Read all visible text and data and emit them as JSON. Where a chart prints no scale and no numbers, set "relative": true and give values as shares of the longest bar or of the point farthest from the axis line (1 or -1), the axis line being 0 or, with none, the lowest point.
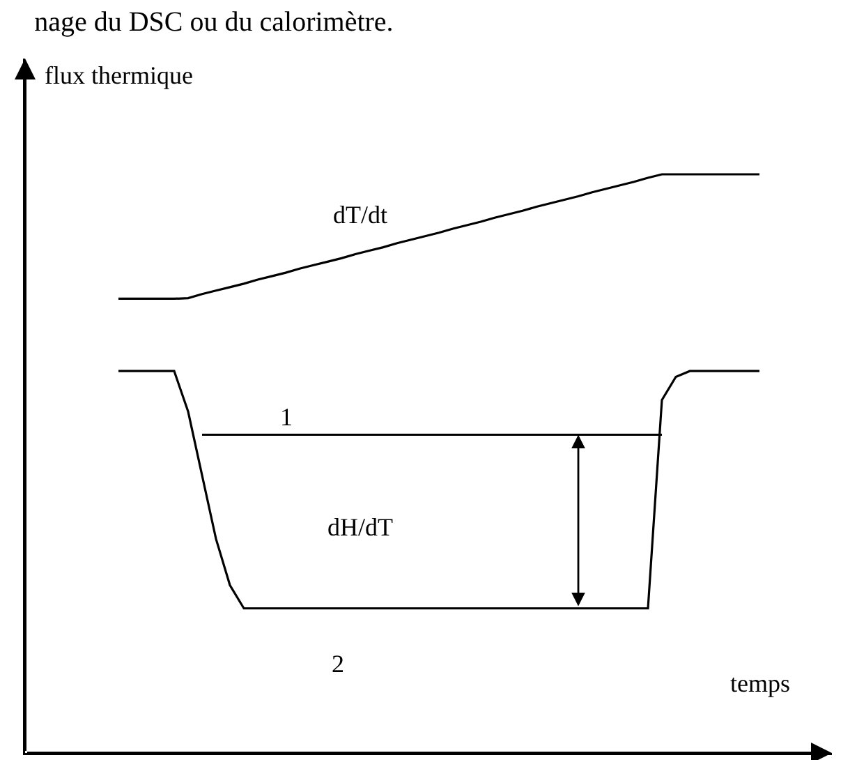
{
  "chart_data": {
    "type": "line",
    "title": "nage du DSC ou du calorimètre.",
    "xlabel": "temps",
    "ylabel": "flux thermique",
    "relative": true,
    "legend": false,
    "marker": "none",
    "line_style": "solid",
    "categories": [
      null,
      null,
      null,
      null,
      null,
      null,
      null,
      null,
      null,
      null,
      null,
      null,
      null,
      null,
      null,
      null,
      null,
      null,
      null,
      null,
      null,
      null,
      null,
      null,
      null,
      null,
      null,
      null,
      null,
      null,
      null,
      null,
      null,
      null,
      null,
      null,
      null,
      null,
      null,
      null,
      null,
      null,
      null,
      null,
      null,
      null,
      null
    ],
    "annotations": [
      "dH/dT"
    ],
    "series": [
      {
        "name": "dT/dt",
        "color": "#000000",
        "values": [
          0.785,
          0.785,
          0.785,
          0.785,
          0.785,
          0.786,
          0.793,
          0.799,
          0.805,
          0.811,
          0.818,
          0.824,
          0.83,
          0.837,
          0.843,
          0.849,
          0.855,
          0.862,
          0.868,
          0.874,
          0.881,
          0.887,
          0.893,
          0.899,
          0.906,
          0.912,
          0.918,
          0.925,
          0.931,
          0.937,
          0.944,
          0.95,
          0.956,
          0.962,
          0.969,
          0.975,
          0.981,
          0.987,
          0.994,
          1,
          1,
          1,
          1,
          1,
          1,
          1,
          1
        ]
      },
      {
        "name": "2",
        "color": "#000000",
        "values": [
          0.66,
          0.66,
          0.66,
          0.66,
          0.66,
          0.59,
          0.48,
          0.37,
          0.29,
          0.25,
          0.25,
          0.25,
          0.25,
          0.25,
          0.25,
          0.25,
          0.25,
          0.25,
          0.25,
          0.25,
          0.25,
          0.25,
          0.25,
          0.25,
          0.25,
          0.25,
          0.25,
          0.25,
          0.25,
          0.25,
          0.25,
          0.25,
          0.25,
          0.25,
          0.25,
          0.25,
          0.25,
          0.25,
          0.25,
          0.61,
          0.65,
          0.66,
          0.66,
          0.66,
          0.66,
          0.66,
          0.66
        ]
      },
      {
        "name": "1",
        "color": "#000000",
        "values": [
          null,
          null,
          null,
          null,
          null,
          null,
          0.55,
          0.55,
          0.55,
          0.55,
          0.55,
          0.55,
          0.55,
          0.55,
          0.55,
          0.55,
          0.55,
          0.55,
          0.55,
          0.55,
          0.55,
          0.55,
          0.55,
          0.55,
          0.55,
          0.55,
          0.55,
          0.55,
          0.55,
          0.55,
          0.55,
          0.55,
          0.55,
          0.55,
          0.55,
          0.55,
          0.55,
          0.55,
          0.55,
          0.55,
          null,
          null,
          null,
          null,
          null,
          null,
          null
        ]
      }
    ]
  }
}
